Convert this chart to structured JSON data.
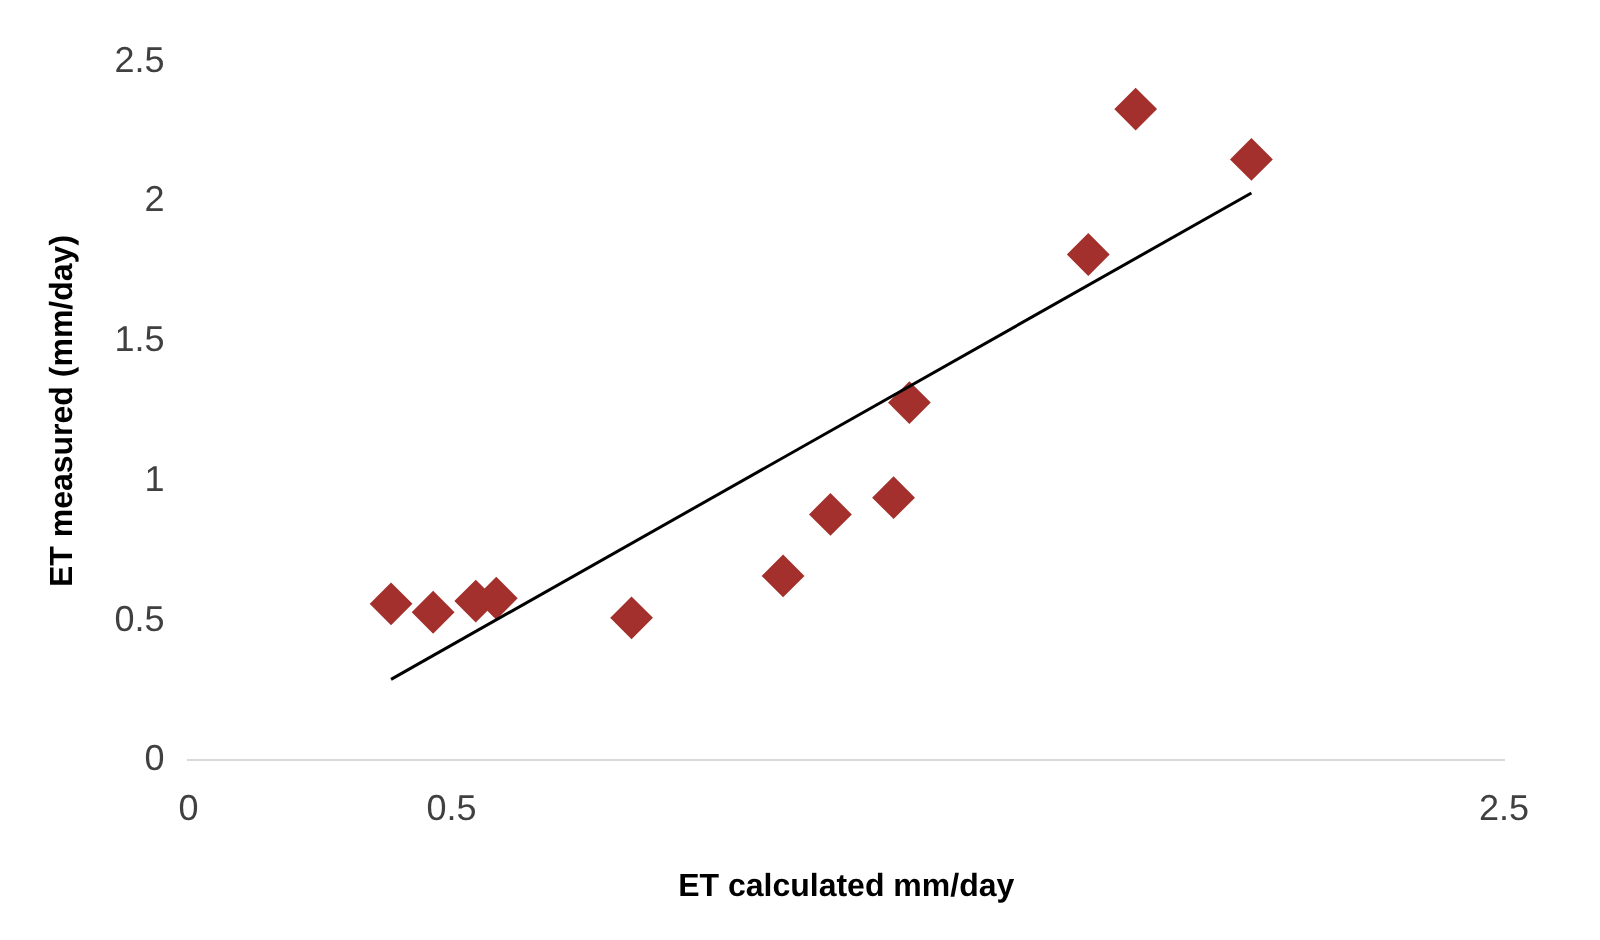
{
  "chart_data": {
    "type": "scatter",
    "xlabel": "ET calculated mm/day",
    "ylabel": "ET measured (mm/day)",
    "xlim": [
      0,
      2.5
    ],
    "xticks": [
      0,
      0.5,
      2.5
    ],
    "ylim": [
      0,
      2.5
    ],
    "yticks": [
      0,
      0.5,
      1,
      1.5,
      2,
      2.5
    ],
    "grid": false,
    "legend": false,
    "series": [
      {
        "marker": "diamond",
        "color": "#a3302c",
        "x": [
          0.385,
          0.465,
          0.546,
          0.585,
          0.842,
          1.13,
          1.22,
          1.34,
          1.37,
          1.71,
          1.8,
          2.02
        ],
        "values": [
          0.56,
          0.53,
          0.57,
          0.58,
          0.51,
          0.66,
          0.88,
          0.94,
          1.28,
          1.81,
          2.33,
          2.15
        ]
      },
      {
        "type": "line",
        "marker": "none",
        "color": "#000000",
        "x": [
          0.385,
          2.02
        ],
        "values": [
          0.29,
          2.03
        ]
      }
    ]
  }
}
